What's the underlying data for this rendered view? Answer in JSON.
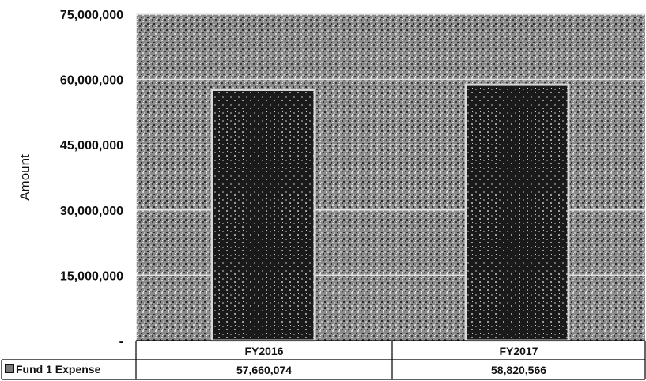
{
  "chart_data": {
    "type": "bar",
    "title": "",
    "xlabel": "",
    "ylabel": "Amount",
    "ylim": [
      0,
      75000000
    ],
    "yticks": [
      0,
      15000000,
      30000000,
      45000000,
      60000000,
      75000000
    ],
    "ytick_labels": [
      "-",
      "15,000,000",
      "30,000,000",
      "45,000,000",
      "60,000,000",
      "75,000,000"
    ],
    "categories": [
      "FY2016",
      "FY2017"
    ],
    "series": [
      {
        "name": "Fund 1 Expense",
        "values": [
          57660074,
          58820566
        ],
        "value_labels": [
          "57,660,074",
          "58,820,566"
        ]
      }
    ],
    "grid": true,
    "legend": "data-table",
    "colors": {
      "plot_bg": "#7a7a7a",
      "bar": "#1a1a1a",
      "bar_border": "#d8d8d8",
      "gridline": "#e6e6e6",
      "table_border": "#000000"
    }
  }
}
